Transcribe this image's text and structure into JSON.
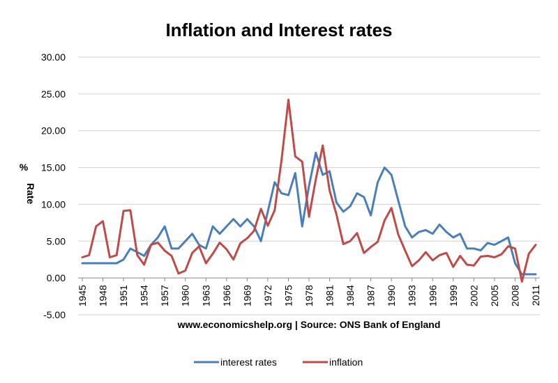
{
  "chart_data": {
    "type": "line",
    "title": "Inflation and Interest rates",
    "xlabel": "www.economicshelp.org | Source: ONS Bank of England",
    "ylabel_lines": [
      "%",
      "Rate"
    ],
    "ylim": [
      -5,
      30
    ],
    "yticks": [
      "-5.00",
      "0.00",
      "5.00",
      "10.00",
      "15.00",
      "20.00",
      "25.00",
      "30.00"
    ],
    "xticks": [
      "1945",
      "1948",
      "1951",
      "1954",
      "1957",
      "1960",
      "1963",
      "1966",
      "1969",
      "1972",
      "1975",
      "1978",
      "1981",
      "1984",
      "1987",
      "1990",
      "1993",
      "1996",
      "1999",
      "2002",
      "2005",
      "2008",
      "2011"
    ],
    "grid": true,
    "legend_position": "bottom",
    "x": [
      1945,
      1946,
      1947,
      1948,
      1949,
      1950,
      1951,
      1952,
      1953,
      1954,
      1955,
      1956,
      1957,
      1958,
      1959,
      1960,
      1961,
      1962,
      1963,
      1964,
      1965,
      1966,
      1967,
      1968,
      1969,
      1970,
      1971,
      1972,
      1973,
      1974,
      1975,
      1976,
      1977,
      1978,
      1979,
      1980,
      1981,
      1982,
      1983,
      1984,
      1985,
      1986,
      1987,
      1988,
      1989,
      1990,
      1991,
      1992,
      1993,
      1994,
      1995,
      1996,
      1997,
      1998,
      1999,
      2000,
      2001,
      2002,
      2003,
      2004,
      2005,
      2006,
      2007,
      2008,
      2009,
      2010,
      2011
    ],
    "series": [
      {
        "name": "interest rates",
        "color": "#4a7ebb",
        "values": [
          2,
          2,
          2,
          2,
          2,
          2,
          2.5,
          4,
          3.5,
          3,
          4.5,
          5.5,
          7,
          4,
          4,
          5,
          6,
          4.5,
          4,
          7,
          6,
          7,
          8,
          7,
          8,
          7,
          5,
          9,
          13,
          11.5,
          11.25,
          14.25,
          7,
          12.5,
          17,
          14,
          14.5,
          10.25,
          9,
          9.75,
          11.5,
          11,
          8.5,
          13,
          15,
          14,
          10.5,
          7,
          5.5,
          6.25,
          6.5,
          6,
          7.25,
          6.25,
          5.5,
          6,
          4,
          4,
          3.75,
          4.75,
          4.5,
          5,
          5.5,
          2,
          0.5,
          0.5,
          0.5
        ]
      },
      {
        "name": "inflation",
        "color": "#be4b48",
        "values": [
          2.8,
          3.1,
          7,
          7.7,
          2.8,
          3.1,
          9.1,
          9.2,
          3.1,
          1.8,
          4.5,
          4.8,
          3.7,
          3,
          0.6,
          1,
          3.4,
          4.3,
          2,
          3.3,
          4.8,
          3.9,
          2.5,
          4.7,
          5.4,
          6.4,
          9.4,
          7.1,
          9.2,
          16,
          24.2,
          16.5,
          15.8,
          8.3,
          13.4,
          18,
          11.9,
          8.6,
          4.6,
          5,
          6.1,
          3.4,
          4.2,
          4.9,
          7.8,
          9.5,
          5.9,
          3.7,
          1.6,
          2.4,
          3.5,
          2.4,
          3.1,
          3.4,
          1.5,
          3,
          1.8,
          1.7,
          2.9,
          3,
          2.8,
          3.2,
          4.3,
          4,
          -0.5,
          3.3,
          4.5
        ]
      }
    ]
  }
}
